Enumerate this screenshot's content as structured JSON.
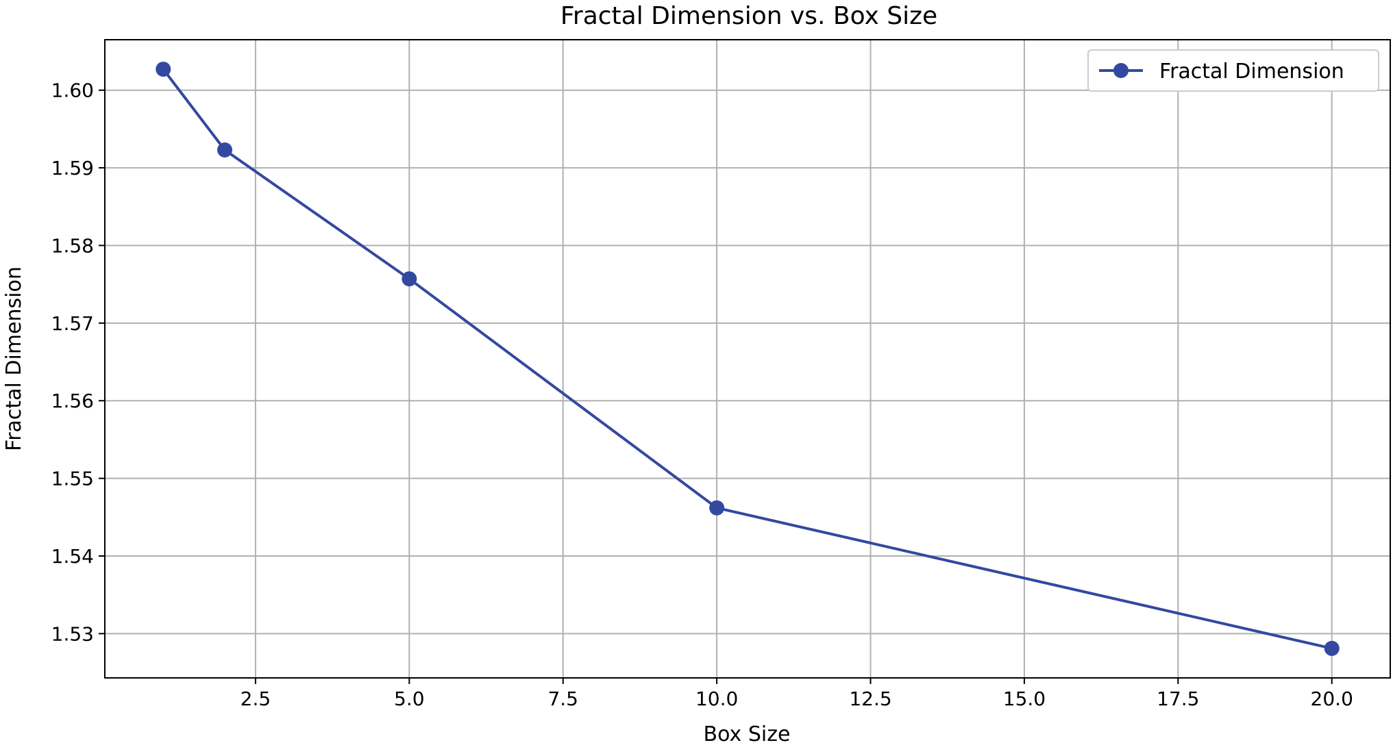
{
  "chart_data": {
    "type": "line",
    "title": "Fractal Dimension vs. Box Size",
    "xlabel": "Box Size",
    "ylabel": "Fractal Dimension",
    "x": [
      1,
      2,
      5,
      10,
      20
    ],
    "series": [
      {
        "name": "Fractal Dimension",
        "values": [
          1.6027,
          1.5923,
          1.5757,
          1.5462,
          1.5281
        ],
        "color": "#3349a0",
        "marker": "circle"
      }
    ],
    "xlim": [
      0.05,
      20.95
    ],
    "ylim": [
      1.5243,
      1.6065
    ],
    "xticks": [
      2.5,
      5.0,
      7.5,
      10.0,
      12.5,
      15.0,
      17.5,
      20.0
    ],
    "xtick_labels": [
      "2.5",
      "5.0",
      "7.5",
      "10.0",
      "12.5",
      "15.0",
      "17.5",
      "20.0"
    ],
    "yticks": [
      1.53,
      1.54,
      1.55,
      1.56,
      1.57,
      1.58,
      1.59,
      1.6
    ],
    "ytick_labels": [
      "1.53",
      "1.54",
      "1.55",
      "1.56",
      "1.57",
      "1.58",
      "1.59",
      "1.60"
    ],
    "grid": true,
    "legend_position": "upper right"
  }
}
